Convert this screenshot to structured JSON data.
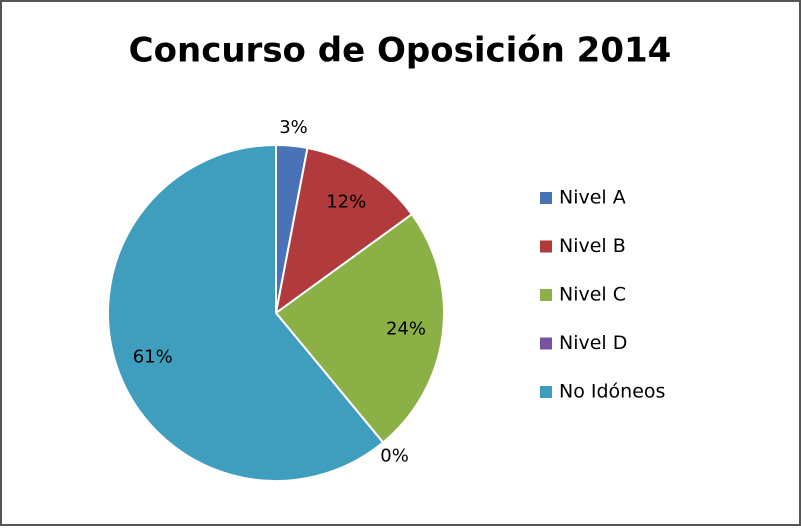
{
  "chart_data": {
    "type": "pie",
    "title": "Concurso de Oposición 2014",
    "categories": [
      "Nivel A",
      "Nivel B",
      "Nivel C",
      "Nivel D",
      "No Idóneos"
    ],
    "values": [
      3,
      12,
      24,
      0,
      61
    ],
    "value_labels": [
      "3%",
      "12%",
      "24%",
      "0%",
      "61%"
    ],
    "colors": [
      "#4a72b8",
      "#b13a3d",
      "#8bb045",
      "#7553a0",
      "#3f9ebe"
    ],
    "legend": "right"
  }
}
